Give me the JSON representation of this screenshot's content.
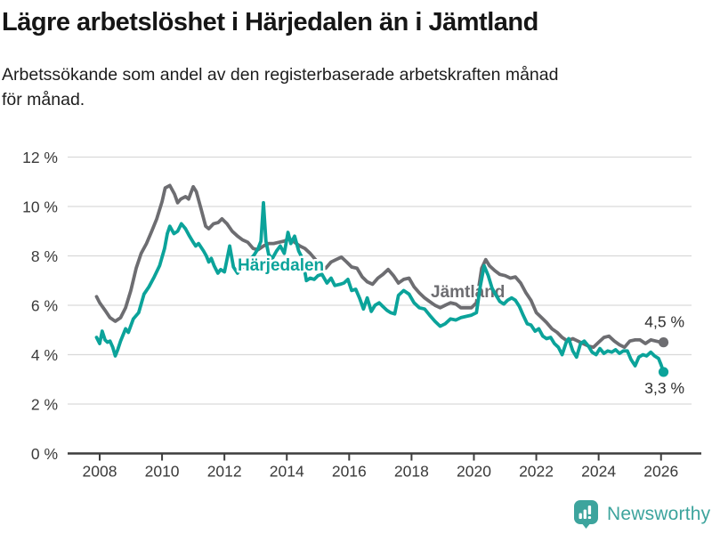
{
  "header": {
    "title": "Lägre arbetslöshet i Härjedalen än i Jämtland",
    "subtitle_line1": "Arbetssökande som andel av den registerbaserade arbetskraften månad",
    "subtitle_line2": "för månad."
  },
  "footer": {
    "brand": "Newsworthy",
    "icon": "bar-chart-speech-bubble-icon",
    "brand_color": "#3da49d"
  },
  "chart_data": {
    "type": "line",
    "title": "Lägre arbetslöshet i Härjedalen än i Jämtland",
    "subtitle": "Arbetssökande som andel av den registerbaserade arbetskraften månad för månad.",
    "grid": true,
    "legend_position": "inline-labels",
    "x_axis": {
      "ticks": [
        2008,
        2010,
        2012,
        2014,
        2016,
        2018,
        2020,
        2022,
        2024,
        2026
      ],
      "data_range": [
        2007.9,
        2026.08
      ]
    },
    "y_axis": {
      "tick_values": [
        0,
        2,
        4,
        6,
        8,
        10,
        12
      ],
      "tick_labels": [
        "0 %",
        "2 %",
        "4 %",
        "6 %",
        "8 %",
        "10 %",
        "12 %"
      ],
      "min": 0,
      "max": 12
    },
    "series": [
      {
        "name": "Jämtland",
        "color": "#6d6d71",
        "end_label": "4,5 %",
        "end_value": 4.5,
        "points": [
          [
            2007.9,
            6.35
          ],
          [
            2008.0,
            6.1
          ],
          [
            2008.17,
            5.8
          ],
          [
            2008.33,
            5.5
          ],
          [
            2008.5,
            5.35
          ],
          [
            2008.67,
            5.5
          ],
          [
            2008.83,
            5.9
          ],
          [
            2009.0,
            6.6
          ],
          [
            2009.17,
            7.5
          ],
          [
            2009.33,
            8.1
          ],
          [
            2009.5,
            8.5
          ],
          [
            2009.67,
            9.0
          ],
          [
            2009.83,
            9.5
          ],
          [
            2010.0,
            10.2
          ],
          [
            2010.1,
            10.75
          ],
          [
            2010.25,
            10.85
          ],
          [
            2010.4,
            10.5
          ],
          [
            2010.5,
            10.15
          ],
          [
            2010.6,
            10.3
          ],
          [
            2010.75,
            10.4
          ],
          [
            2010.85,
            10.3
          ],
          [
            2011.0,
            10.8
          ],
          [
            2011.1,
            10.6
          ],
          [
            2011.25,
            9.9
          ],
          [
            2011.4,
            9.2
          ],
          [
            2011.5,
            9.1
          ],
          [
            2011.65,
            9.3
          ],
          [
            2011.8,
            9.35
          ],
          [
            2011.92,
            9.5
          ],
          [
            2012.08,
            9.3
          ],
          [
            2012.25,
            9.0
          ],
          [
            2012.42,
            8.8
          ],
          [
            2012.58,
            8.65
          ],
          [
            2012.75,
            8.55
          ],
          [
            2012.92,
            8.3
          ],
          [
            2013.08,
            8.25
          ],
          [
            2013.25,
            8.4
          ],
          [
            2013.42,
            8.5
          ],
          [
            2013.58,
            8.5
          ],
          [
            2013.75,
            8.55
          ],
          [
            2013.92,
            8.6
          ],
          [
            2014.08,
            8.7
          ],
          [
            2014.25,
            8.55
          ],
          [
            2014.42,
            8.4
          ],
          [
            2014.58,
            8.3
          ],
          [
            2014.75,
            8.1
          ],
          [
            2014.92,
            7.85
          ],
          [
            2015.08,
            7.6
          ],
          [
            2015.25,
            7.5
          ],
          [
            2015.42,
            7.75
          ],
          [
            2015.58,
            7.85
          ],
          [
            2015.75,
            7.95
          ],
          [
            2015.92,
            7.75
          ],
          [
            2016.08,
            7.55
          ],
          [
            2016.25,
            7.5
          ],
          [
            2016.42,
            7.15
          ],
          [
            2016.58,
            6.95
          ],
          [
            2016.75,
            6.85
          ],
          [
            2016.92,
            7.1
          ],
          [
            2017.08,
            7.25
          ],
          [
            2017.25,
            7.45
          ],
          [
            2017.42,
            7.2
          ],
          [
            2017.58,
            6.9
          ],
          [
            2017.75,
            7.05
          ],
          [
            2017.92,
            7.1
          ],
          [
            2018.08,
            6.75
          ],
          [
            2018.25,
            6.5
          ],
          [
            2018.42,
            6.3
          ],
          [
            2018.58,
            6.15
          ],
          [
            2018.75,
            6.0
          ],
          [
            2018.92,
            5.9
          ],
          [
            2019.08,
            6.0
          ],
          [
            2019.25,
            6.1
          ],
          [
            2019.42,
            6.05
          ],
          [
            2019.58,
            5.9
          ],
          [
            2019.75,
            5.9
          ],
          [
            2019.92,
            5.9
          ],
          [
            2020.08,
            6.1
          ],
          [
            2020.25,
            7.5
          ],
          [
            2020.38,
            7.85
          ],
          [
            2020.5,
            7.6
          ],
          [
            2020.67,
            7.4
          ],
          [
            2020.83,
            7.25
          ],
          [
            2021.0,
            7.2
          ],
          [
            2021.17,
            7.1
          ],
          [
            2021.33,
            7.15
          ],
          [
            2021.5,
            6.9
          ],
          [
            2021.67,
            6.5
          ],
          [
            2021.83,
            6.2
          ],
          [
            2022.0,
            5.7
          ],
          [
            2022.17,
            5.5
          ],
          [
            2022.33,
            5.3
          ],
          [
            2022.5,
            5.05
          ],
          [
            2022.67,
            4.9
          ],
          [
            2022.83,
            4.7
          ],
          [
            2023.0,
            4.55
          ],
          [
            2023.17,
            4.65
          ],
          [
            2023.33,
            4.55
          ],
          [
            2023.5,
            4.45
          ],
          [
            2023.67,
            4.35
          ],
          [
            2023.83,
            4.3
          ],
          [
            2024.0,
            4.5
          ],
          [
            2024.17,
            4.7
          ],
          [
            2024.33,
            4.75
          ],
          [
            2024.5,
            4.55
          ],
          [
            2024.67,
            4.4
          ],
          [
            2024.83,
            4.3
          ],
          [
            2025.0,
            4.55
          ],
          [
            2025.17,
            4.6
          ],
          [
            2025.33,
            4.6
          ],
          [
            2025.5,
            4.45
          ],
          [
            2025.67,
            4.6
          ],
          [
            2025.83,
            4.55
          ],
          [
            2026.0,
            4.5
          ],
          [
            2026.08,
            4.5
          ]
        ]
      },
      {
        "name": "Härjedalen",
        "color": "#0ba39a",
        "end_label": "3,3 %",
        "end_value": 3.3,
        "points": [
          [
            2007.9,
            4.7
          ],
          [
            2008.0,
            4.45
          ],
          [
            2008.08,
            4.95
          ],
          [
            2008.17,
            4.6
          ],
          [
            2008.25,
            4.5
          ],
          [
            2008.33,
            4.55
          ],
          [
            2008.42,
            4.3
          ],
          [
            2008.5,
            3.95
          ],
          [
            2008.58,
            4.2
          ],
          [
            2008.67,
            4.55
          ],
          [
            2008.83,
            5.05
          ],
          [
            2008.92,
            4.9
          ],
          [
            2009.08,
            5.45
          ],
          [
            2009.25,
            5.7
          ],
          [
            2009.42,
            6.45
          ],
          [
            2009.58,
            6.75
          ],
          [
            2009.75,
            7.15
          ],
          [
            2009.92,
            7.6
          ],
          [
            2010.08,
            8.3
          ],
          [
            2010.17,
            8.9
          ],
          [
            2010.25,
            9.2
          ],
          [
            2010.38,
            8.9
          ],
          [
            2010.5,
            9.0
          ],
          [
            2010.62,
            9.3
          ],
          [
            2010.75,
            9.1
          ],
          [
            2010.88,
            8.8
          ],
          [
            2011.0,
            8.55
          ],
          [
            2011.08,
            8.4
          ],
          [
            2011.17,
            8.5
          ],
          [
            2011.33,
            8.2
          ],
          [
            2011.42,
            8.0
          ],
          [
            2011.5,
            7.75
          ],
          [
            2011.58,
            7.9
          ],
          [
            2011.67,
            7.6
          ],
          [
            2011.79,
            7.3
          ],
          [
            2011.88,
            7.45
          ],
          [
            2012.0,
            7.35
          ],
          [
            2012.17,
            8.4
          ],
          [
            2012.29,
            7.55
          ],
          [
            2012.42,
            7.3
          ],
          [
            2012.54,
            7.5
          ],
          [
            2012.67,
            7.6
          ],
          [
            2012.83,
            7.85
          ],
          [
            2012.96,
            8.05
          ],
          [
            2013.08,
            8.3
          ],
          [
            2013.17,
            8.6
          ],
          [
            2013.25,
            10.15
          ],
          [
            2013.33,
            8.6
          ],
          [
            2013.42,
            8.05
          ],
          [
            2013.54,
            7.9
          ],
          [
            2013.67,
            8.2
          ],
          [
            2013.79,
            8.4
          ],
          [
            2013.92,
            8.1
          ],
          [
            2014.04,
            8.95
          ],
          [
            2014.13,
            8.5
          ],
          [
            2014.25,
            8.8
          ],
          [
            2014.38,
            8.2
          ],
          [
            2014.5,
            7.9
          ],
          [
            2014.63,
            7.0
          ],
          [
            2014.75,
            7.1
          ],
          [
            2014.88,
            7.05
          ],
          [
            2015.0,
            7.2
          ],
          [
            2015.13,
            7.25
          ],
          [
            2015.29,
            6.9
          ],
          [
            2015.42,
            7.1
          ],
          [
            2015.54,
            6.8
          ],
          [
            2015.71,
            6.85
          ],
          [
            2015.83,
            6.9
          ],
          [
            2015.96,
            7.05
          ],
          [
            2016.08,
            6.6
          ],
          [
            2016.21,
            6.65
          ],
          [
            2016.33,
            6.3
          ],
          [
            2016.46,
            5.85
          ],
          [
            2016.58,
            6.3
          ],
          [
            2016.71,
            5.75
          ],
          [
            2016.83,
            6.0
          ],
          [
            2016.96,
            6.1
          ],
          [
            2017.08,
            5.95
          ],
          [
            2017.21,
            5.8
          ],
          [
            2017.33,
            5.7
          ],
          [
            2017.46,
            5.65
          ],
          [
            2017.58,
            6.4
          ],
          [
            2017.75,
            6.6
          ],
          [
            2017.92,
            6.45
          ],
          [
            2018.08,
            6.1
          ],
          [
            2018.25,
            5.9
          ],
          [
            2018.42,
            5.85
          ],
          [
            2018.58,
            5.6
          ],
          [
            2018.75,
            5.35
          ],
          [
            2018.92,
            5.15
          ],
          [
            2019.08,
            5.25
          ],
          [
            2019.25,
            5.45
          ],
          [
            2019.42,
            5.4
          ],
          [
            2019.58,
            5.5
          ],
          [
            2019.75,
            5.55
          ],
          [
            2019.92,
            5.6
          ],
          [
            2020.08,
            5.7
          ],
          [
            2020.21,
            6.8
          ],
          [
            2020.33,
            7.6
          ],
          [
            2020.46,
            7.2
          ],
          [
            2020.58,
            6.7
          ],
          [
            2020.71,
            6.4
          ],
          [
            2020.83,
            6.15
          ],
          [
            2020.96,
            6.05
          ],
          [
            2021.08,
            6.2
          ],
          [
            2021.21,
            6.3
          ],
          [
            2021.33,
            6.2
          ],
          [
            2021.46,
            5.95
          ],
          [
            2021.58,
            5.6
          ],
          [
            2021.71,
            5.25
          ],
          [
            2021.83,
            5.2
          ],
          [
            2021.96,
            4.95
          ],
          [
            2022.08,
            5.05
          ],
          [
            2022.21,
            4.75
          ],
          [
            2022.33,
            4.65
          ],
          [
            2022.46,
            4.7
          ],
          [
            2022.58,
            4.45
          ],
          [
            2022.71,
            4.3
          ],
          [
            2022.83,
            4.0
          ],
          [
            2022.96,
            4.5
          ],
          [
            2023.04,
            4.65
          ],
          [
            2023.17,
            4.15
          ],
          [
            2023.29,
            3.9
          ],
          [
            2023.42,
            4.45
          ],
          [
            2023.54,
            4.55
          ],
          [
            2023.67,
            4.35
          ],
          [
            2023.79,
            4.1
          ],
          [
            2023.92,
            4.0
          ],
          [
            2024.04,
            4.25
          ],
          [
            2024.17,
            4.05
          ],
          [
            2024.29,
            4.15
          ],
          [
            2024.42,
            4.1
          ],
          [
            2024.54,
            4.2
          ],
          [
            2024.67,
            4.05
          ],
          [
            2024.79,
            4.15
          ],
          [
            2024.92,
            4.15
          ],
          [
            2025.04,
            3.8
          ],
          [
            2025.17,
            3.55
          ],
          [
            2025.29,
            3.9
          ],
          [
            2025.42,
            4.0
          ],
          [
            2025.54,
            3.95
          ],
          [
            2025.67,
            4.1
          ],
          [
            2025.79,
            3.95
          ],
          [
            2025.92,
            3.85
          ],
          [
            2026.0,
            3.6
          ],
          [
            2026.08,
            3.3
          ]
        ]
      }
    ]
  }
}
